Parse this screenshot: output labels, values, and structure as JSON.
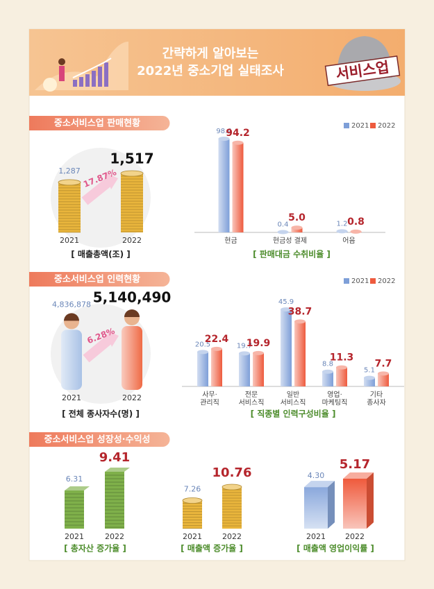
{
  "header": {
    "title_lines": [
      "간략하게 알아보는",
      "2022년 중소기업 실태조사"
    ],
    "badge": "서비스업"
  },
  "sections": [
    "중소서비스업 판매현황",
    "중소서비스업 인력현황",
    "중소서비스업 성장성·수익성"
  ],
  "chart_data": [
    {
      "type": "pictogram",
      "style": "coin",
      "title": "[ 매출총액(조) ]",
      "categories": [
        "2021",
        "2022"
      ],
      "values": [
        1287,
        1517
      ],
      "value_labels": [
        "1,287",
        "1,517"
      ],
      "annotation": {
        "value": 17.87,
        "label": "17.87%"
      },
      "colors": [
        "#e9b53c",
        "#e9b53c"
      ]
    },
    {
      "type": "bar",
      "title": "[ 판매대금 수취비율 ]",
      "categories": [
        "현금",
        "현금성 결제",
        "어음"
      ],
      "series": [
        {
          "name": "2021",
          "color": "#7e9fd8",
          "values": [
            98.4,
            0.4,
            1.2
          ]
        },
        {
          "name": "2022",
          "color": "#ee5b3e",
          "values": [
            94.2,
            5,
            0.8
          ],
          "value_labels": [
            "94.2",
            "5.0",
            "0.8"
          ]
        }
      ]
    },
    {
      "type": "pictogram",
      "style": "person",
      "title": "[ 전체 종사자수(명) ]",
      "categories": [
        "2021",
        "2022"
      ],
      "values": [
        4836878,
        5140490
      ],
      "value_labels": [
        "4,836,878",
        "5,140,490"
      ],
      "annotation": {
        "value": 6.28,
        "label": "6.28%"
      },
      "colors": [
        "#a9c2e6",
        "#ef6a45"
      ]
    },
    {
      "type": "bar",
      "title": "[ 직종별 인력구성비율 ]",
      "categories": [
        "사무·\n관리직",
        "전문\n서비스직",
        "일반\n서비스직",
        "영업·\n마케팅직",
        "기타\n종사자"
      ],
      "series": [
        {
          "name": "2021",
          "color": "#7e9fd8",
          "values": [
            20.5,
            19.7,
            45.9,
            8.8,
            5.1
          ]
        },
        {
          "name": "2022",
          "color": "#ee5b3e",
          "values": [
            22.4,
            19.9,
            38.7,
            11.3,
            7.7
          ]
        }
      ]
    },
    {
      "type": "pictogram",
      "style": "money",
      "title": "[ 총자산 증가율 ]",
      "categories": [
        "2021",
        "2022"
      ],
      "values": [
        6.31,
        9.41
      ],
      "colors": [
        "#7fb04a",
        "#7fb04a"
      ]
    },
    {
      "type": "pictogram",
      "style": "coin",
      "title": "[ 매출액 증가율 ]",
      "categories": [
        "2021",
        "2022"
      ],
      "values": [
        7.26,
        10.76
      ],
      "colors": [
        "#e9b53c",
        "#e9b53c"
      ]
    },
    {
      "type": "pictogram",
      "style": "box",
      "title": "[ 매출액 영업이익률 ]",
      "categories": [
        "2021",
        "2022"
      ],
      "values": [
        4.3,
        5.17
      ],
      "value_labels": [
        "4.30",
        "5.17"
      ],
      "colors": [
        "#8aa8dc",
        "#ef5a3c"
      ]
    }
  ]
}
